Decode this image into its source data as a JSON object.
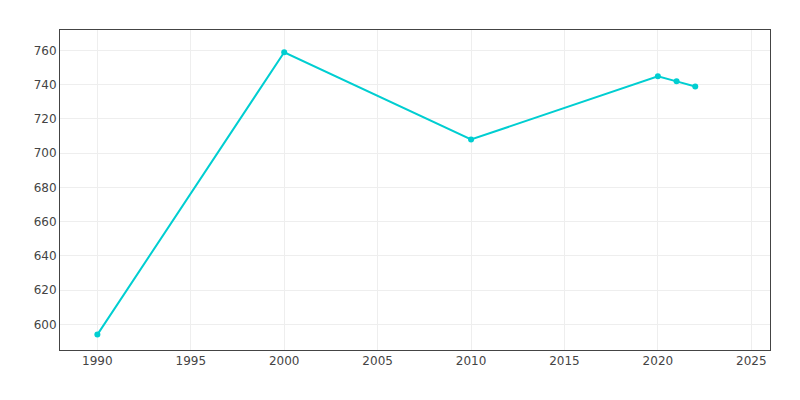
{
  "chart_data": {
    "type": "line",
    "x": [
      1990,
      2000,
      2010,
      2020,
      2021,
      2022
    ],
    "values": [
      594,
      759,
      708,
      745,
      742,
      739
    ],
    "color": "#00CED1",
    "marker": "circle",
    "xlim": [
      1988,
      2026
    ],
    "ylim": [
      585,
      772
    ],
    "xticks": [
      1990,
      1995,
      2000,
      2005,
      2010,
      2015,
      2020,
      2025
    ],
    "yticks": [
      600,
      620,
      640,
      660,
      680,
      700,
      720,
      740,
      760
    ],
    "grid": true
  }
}
